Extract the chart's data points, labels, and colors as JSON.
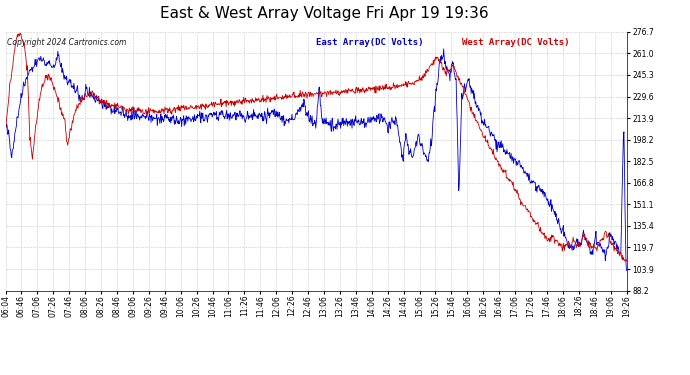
{
  "title": "East & West Array Voltage Fri Apr 19 19:36",
  "copyright": "Copyright 2024 Cartronics.com",
  "legend_east": "East Array(DC Volts)",
  "legend_west": "West Array(DC Volts)",
  "east_color": "#0000cc",
  "west_color": "#cc0000",
  "background_color": "#ffffff",
  "plot_bg_color": "#ffffff",
  "grid_color": "#bbbbbb",
  "ylim": [
    88.2,
    276.7
  ],
  "yticks": [
    88.2,
    103.9,
    119.7,
    135.4,
    151.1,
    166.8,
    182.5,
    198.2,
    213.9,
    229.6,
    245.3,
    261.0,
    276.7
  ],
  "xtick_labels": [
    "06:04",
    "06:46",
    "07:06",
    "07:26",
    "07:46",
    "08:06",
    "08:26",
    "08:46",
    "09:06",
    "09:26",
    "09:46",
    "10:06",
    "10:26",
    "10:46",
    "11:06",
    "11:26",
    "11:46",
    "12:06",
    "12:26",
    "12:46",
    "13:06",
    "13:26",
    "13:46",
    "14:06",
    "14:26",
    "14:46",
    "15:06",
    "15:26",
    "15:46",
    "16:06",
    "16:26",
    "16:46",
    "17:06",
    "17:26",
    "17:46",
    "18:06",
    "18:26",
    "18:46",
    "19:06",
    "19:26"
  ],
  "title_fontsize": 11,
  "label_fontsize": 6.5,
  "tick_fontsize": 5.5,
  "copyright_fontsize": 5.5,
  "linewidth": 0.6
}
